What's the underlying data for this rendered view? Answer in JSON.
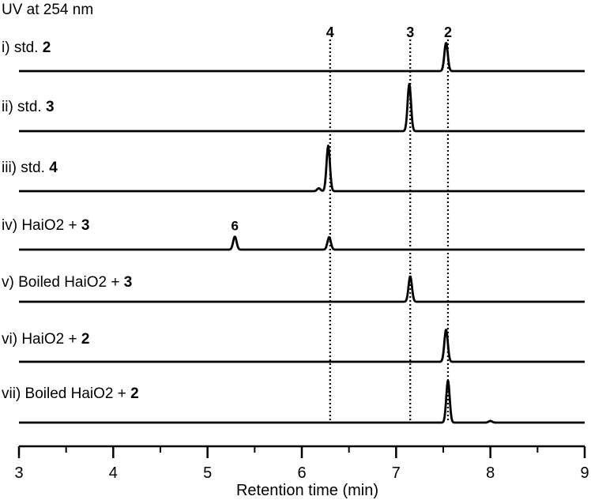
{
  "chart_data": {
    "type": "line",
    "title": "UV at 254 nm",
    "xlabel": "Retention time (min)",
    "ylabel": "",
    "xlim": [
      3,
      9
    ],
    "x_ticks": [
      "3",
      "4",
      "5",
      "6",
      "7",
      "8",
      "9"
    ],
    "minor_ticks": [
      3.5,
      4.5,
      5.5,
      6.5,
      7.5,
      8.5
    ],
    "grid": false,
    "legend": "none",
    "trace_color": "#000000",
    "reference_lines": [
      {
        "label": "4",
        "x": 6.3
      },
      {
        "label": "3",
        "x": 7.15
      },
      {
        "label": "2",
        "x": 7.55
      }
    ],
    "series": [
      {
        "prefix": "i) std. ",
        "bold": "2",
        "peaks": [
          {
            "x": 7.53,
            "height": 0.5
          }
        ]
      },
      {
        "prefix": "ii) std. ",
        "bold": "3",
        "peaks": [
          {
            "x": 7.14,
            "height": 0.83
          }
        ]
      },
      {
        "prefix": "iii) std. ",
        "bold": "4",
        "peaks": [
          {
            "x": 6.28,
            "height": 0.8
          },
          {
            "x": 6.18,
            "height": 0.05
          }
        ]
      },
      {
        "prefix": "iv) HaiO2 + ",
        "bold": "3",
        "peaks": [
          {
            "x": 5.29,
            "height": 0.23,
            "label": "6"
          },
          {
            "x": 6.29,
            "height": 0.22
          }
        ]
      },
      {
        "prefix": "v) Boiled HaiO2 + ",
        "bold": "3",
        "peaks": [
          {
            "x": 7.15,
            "height": 0.45
          }
        ]
      },
      {
        "prefix": "vi) HaiO2 + ",
        "bold": "2",
        "peaks": [
          {
            "x": 7.53,
            "height": 0.57
          }
        ]
      },
      {
        "prefix": "vii) Boiled HaiO2 + ",
        "bold": "2",
        "peaks": [
          {
            "x": 7.55,
            "height": 0.74
          },
          {
            "x": 8.0,
            "height": 0.03
          }
        ]
      }
    ]
  }
}
